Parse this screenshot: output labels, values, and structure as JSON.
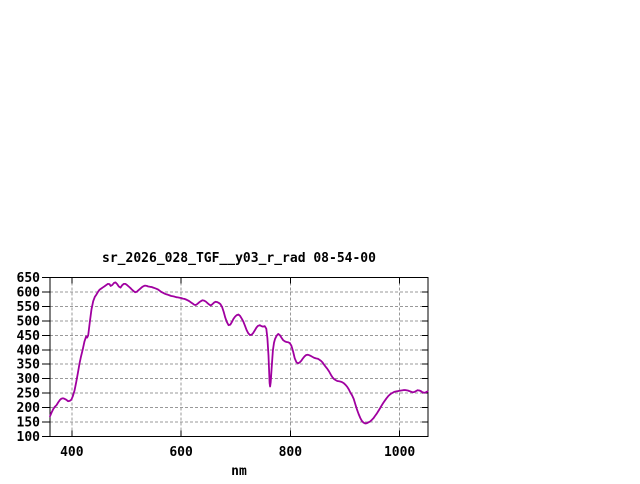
{
  "page": {
    "background": "#ffffff"
  },
  "chart_data": {
    "type": "line",
    "title": "sr_2026_028_TGF__y03_r_rad 08-54-00",
    "xlabel": "nm",
    "ylabel": "",
    "xlim": [
      360,
      1052
    ],
    "ylim": [
      100,
      650
    ],
    "x_ticks": [
      400,
      600,
      800,
      1000
    ],
    "y_ticks": [
      100,
      150,
      200,
      250,
      300,
      350,
      400,
      450,
      500,
      550,
      600,
      650
    ],
    "grid": true,
    "legend_position": "none",
    "line_color": "#a000a0",
    "grid_color": "#999999",
    "border_color": "#000000",
    "series": [
      {
        "x": [
          360,
          363,
          366,
          369,
          372,
          375,
          378,
          381,
          384,
          387,
          390,
          393,
          396,
          399,
          402,
          405,
          408,
          411,
          414,
          417,
          420,
          423,
          426,
          428,
          430,
          433,
          436,
          439,
          442,
          445,
          448,
          451,
          454,
          457,
          460,
          463,
          466,
          469,
          471,
          474,
          477,
          480,
          483,
          486,
          489,
          492,
          495,
          498,
          501,
          504,
          507,
          510,
          513,
          516,
          519,
          522,
          525,
          528,
          531,
          534,
          537,
          540,
          543,
          546,
          549,
          552,
          555,
          558,
          561,
          564,
          567,
          570,
          573,
          576,
          579,
          582,
          585,
          588,
          591,
          594,
          597,
          600,
          603,
          606,
          609,
          612,
          615,
          618,
          621,
          624,
          627,
          630,
          633,
          636,
          639,
          642,
          645,
          648,
          651,
          654,
          657,
          660,
          663,
          666,
          669,
          672,
          675,
          678,
          681,
          684,
          687,
          690,
          693,
          696,
          699,
          702,
          705,
          708,
          711,
          714,
          717,
          720,
          723,
          726,
          729,
          732,
          735,
          738,
          741,
          744,
          747,
          750,
          753,
          756,
          758,
          760,
          762,
          763,
          764,
          766,
          768,
          770,
          772,
          775,
          778,
          781,
          784,
          787,
          790,
          793,
          796,
          799,
          802,
          805,
          808,
          811,
          814,
          817,
          820,
          823,
          826,
          829,
          832,
          835,
          838,
          841,
          844,
          847,
          850,
          853,
          856,
          859,
          862,
          865,
          868,
          871,
          874,
          877,
          880,
          883,
          886,
          889,
          892,
          895,
          898,
          901,
          904,
          907,
          910,
          913,
          916,
          919,
          922,
          925,
          928,
          931,
          934,
          937,
          940,
          943,
          946,
          949,
          952,
          955,
          958,
          961,
          964,
          967,
          970,
          973,
          976,
          979,
          982,
          985,
          988,
          991,
          994,
          997,
          1000,
          1003,
          1006,
          1009,
          1012,
          1015,
          1018,
          1021,
          1024,
          1027,
          1030,
          1033,
          1036,
          1039,
          1042,
          1045,
          1048,
          1051
        ],
        "y": [
          170,
          183,
          195,
          203,
          209,
          218,
          226,
          231,
          232,
          230,
          227,
          222,
          223,
          227,
          240,
          260,
          288,
          320,
          352,
          378,
          402,
          428,
          446,
          442,
          450,
          498,
          540,
          568,
          583,
          591,
          601,
          608,
          612,
          616,
          620,
          624,
          628,
          627,
          621,
          624,
          631,
          633,
          627,
          619,
          615,
          623,
          628,
          628,
          624,
          619,
          614,
          608,
          603,
          599,
          601,
          606,
          611,
          616,
          620,
          622,
          621,
          619,
          618,
          617,
          615,
          613,
          611,
          608,
          604,
          600,
          597,
          594,
          592,
          590,
          588,
          586,
          585,
          584,
          582,
          581,
          580,
          579,
          577,
          576,
          574,
          571,
          568,
          564,
          560,
          556,
          555,
          559,
          564,
          568,
          571,
          570,
          567,
          562,
          557,
          553,
          557,
          563,
          566,
          565,
          562,
          558,
          548,
          531,
          511,
          495,
          485,
          487,
          496,
          507,
          515,
          520,
          522,
          517,
          508,
          497,
          483,
          468,
          457,
          451,
          452,
          458,
          467,
          477,
          483,
          485,
          482,
          480,
          482,
          473,
          440,
          380,
          285,
          273,
          288,
          345,
          398,
          424,
          438,
          449,
          455,
          450,
          441,
          433,
          429,
          427,
          426,
          423,
          414,
          394,
          371,
          357,
          353,
          356,
          362,
          370,
          377,
          382,
          383,
          381,
          378,
          375,
          372,
          370,
          369,
          366,
          362,
          356,
          348,
          340,
          333,
          325,
          314,
          305,
          299,
          295,
          292,
          291,
          290,
          288,
          284,
          279,
          272,
          263,
          252,
          242,
          230,
          212,
          193,
          178,
          164,
          154,
          148,
          145,
          146,
          149,
          152,
          157,
          163,
          171,
          179,
          188,
          197,
          207,
          216,
          224,
          232,
          239,
          245,
          249,
          252,
          255,
          256,
          257,
          258,
          259,
          260,
          261,
          260,
          259,
          257,
          255,
          253,
          254,
          257,
          260,
          259,
          257,
          253,
          251,
          253,
          256
        ]
      }
    ]
  }
}
